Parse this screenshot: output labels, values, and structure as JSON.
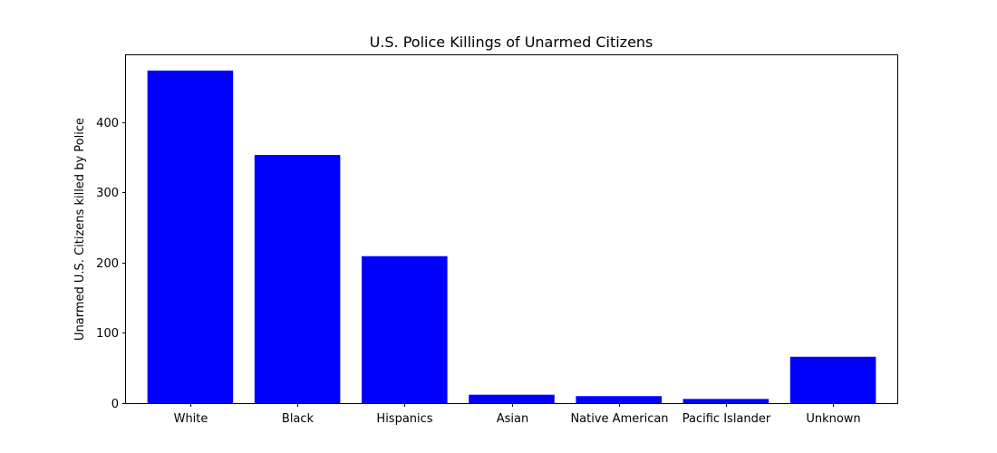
{
  "chart_data": {
    "type": "bar",
    "title": "U.S. Police Killings of Unarmed Citizens",
    "xlabel": "",
    "ylabel": "Unarmed U.S. Citizens killed by Police",
    "categories": [
      "White",
      "Black",
      "Hispanics",
      "Asian",
      "Native American",
      "Pacific Islander",
      "Unknown"
    ],
    "values": [
      473,
      353,
      209,
      12,
      10,
      6,
      66
    ],
    "ylim": [
      0,
      496
    ],
    "yticks": [
      0,
      100,
      200,
      300,
      400
    ],
    "bar_color": "#0000ff",
    "grid": false,
    "legend": "none"
  }
}
